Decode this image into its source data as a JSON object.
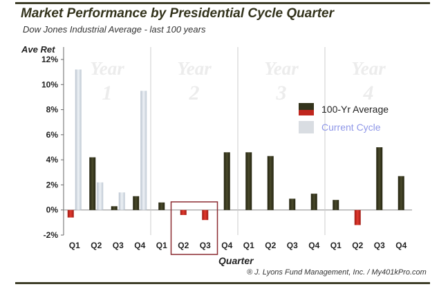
{
  "title": "Market Performance by Presidential Cycle Quarter",
  "subtitle": "Dow Jones Industrial Average - last 100 years",
  "credit": "® J. Lyons Fund Management, Inc. / My401kPro.com",
  "chart_data": {
    "type": "bar",
    "xlabel": "Quarter",
    "ylabel": "Ave Ret",
    "ylim": [
      -2,
      12
    ],
    "yticks": [
      "-2%",
      "0%",
      "2%",
      "4%",
      "6%",
      "8%",
      "10%",
      "12%"
    ],
    "ytick_values": [
      -2,
      0,
      2,
      4,
      6,
      8,
      10,
      12
    ],
    "grid": "vertical separators between years",
    "legend_position": "right",
    "year_labels": [
      {
        "word": "Year",
        "num": "1"
      },
      {
        "word": "Year",
        "num": "2"
      },
      {
        "word": "Year",
        "num": "3"
      },
      {
        "word": "Year",
        "num": "4"
      }
    ],
    "categories": [
      "Q1",
      "Q2",
      "Q3",
      "Q4",
      "Q1",
      "Q2",
      "Q3",
      "Q4",
      "Q1",
      "Q2",
      "Q3",
      "Q4",
      "Q1",
      "Q2",
      "Q3",
      "Q4"
    ],
    "series": [
      {
        "name": "100-Yr Average",
        "values": [
          -0.6,
          4.2,
          0.3,
          1.1,
          0.6,
          -0.4,
          -0.8,
          4.6,
          4.6,
          4.3,
          0.9,
          1.3,
          0.8,
          -1.2,
          5.0,
          2.7
        ]
      },
      {
        "name": "Current Cycle",
        "values": [
          11.2,
          2.2,
          1.4,
          9.5,
          null,
          null,
          null,
          null,
          null,
          null,
          null,
          null,
          null,
          null,
          null,
          null
        ]
      }
    ],
    "highlight": {
      "categories_index": [
        5,
        6
      ],
      "style": "red box"
    },
    "colors": {
      "average_positive": "#33331c",
      "average_negative": "#c0261e",
      "current": "#d3dbe4",
      "highlight": "#8b2a30",
      "legend_current_text": "#8f97e8"
    }
  }
}
